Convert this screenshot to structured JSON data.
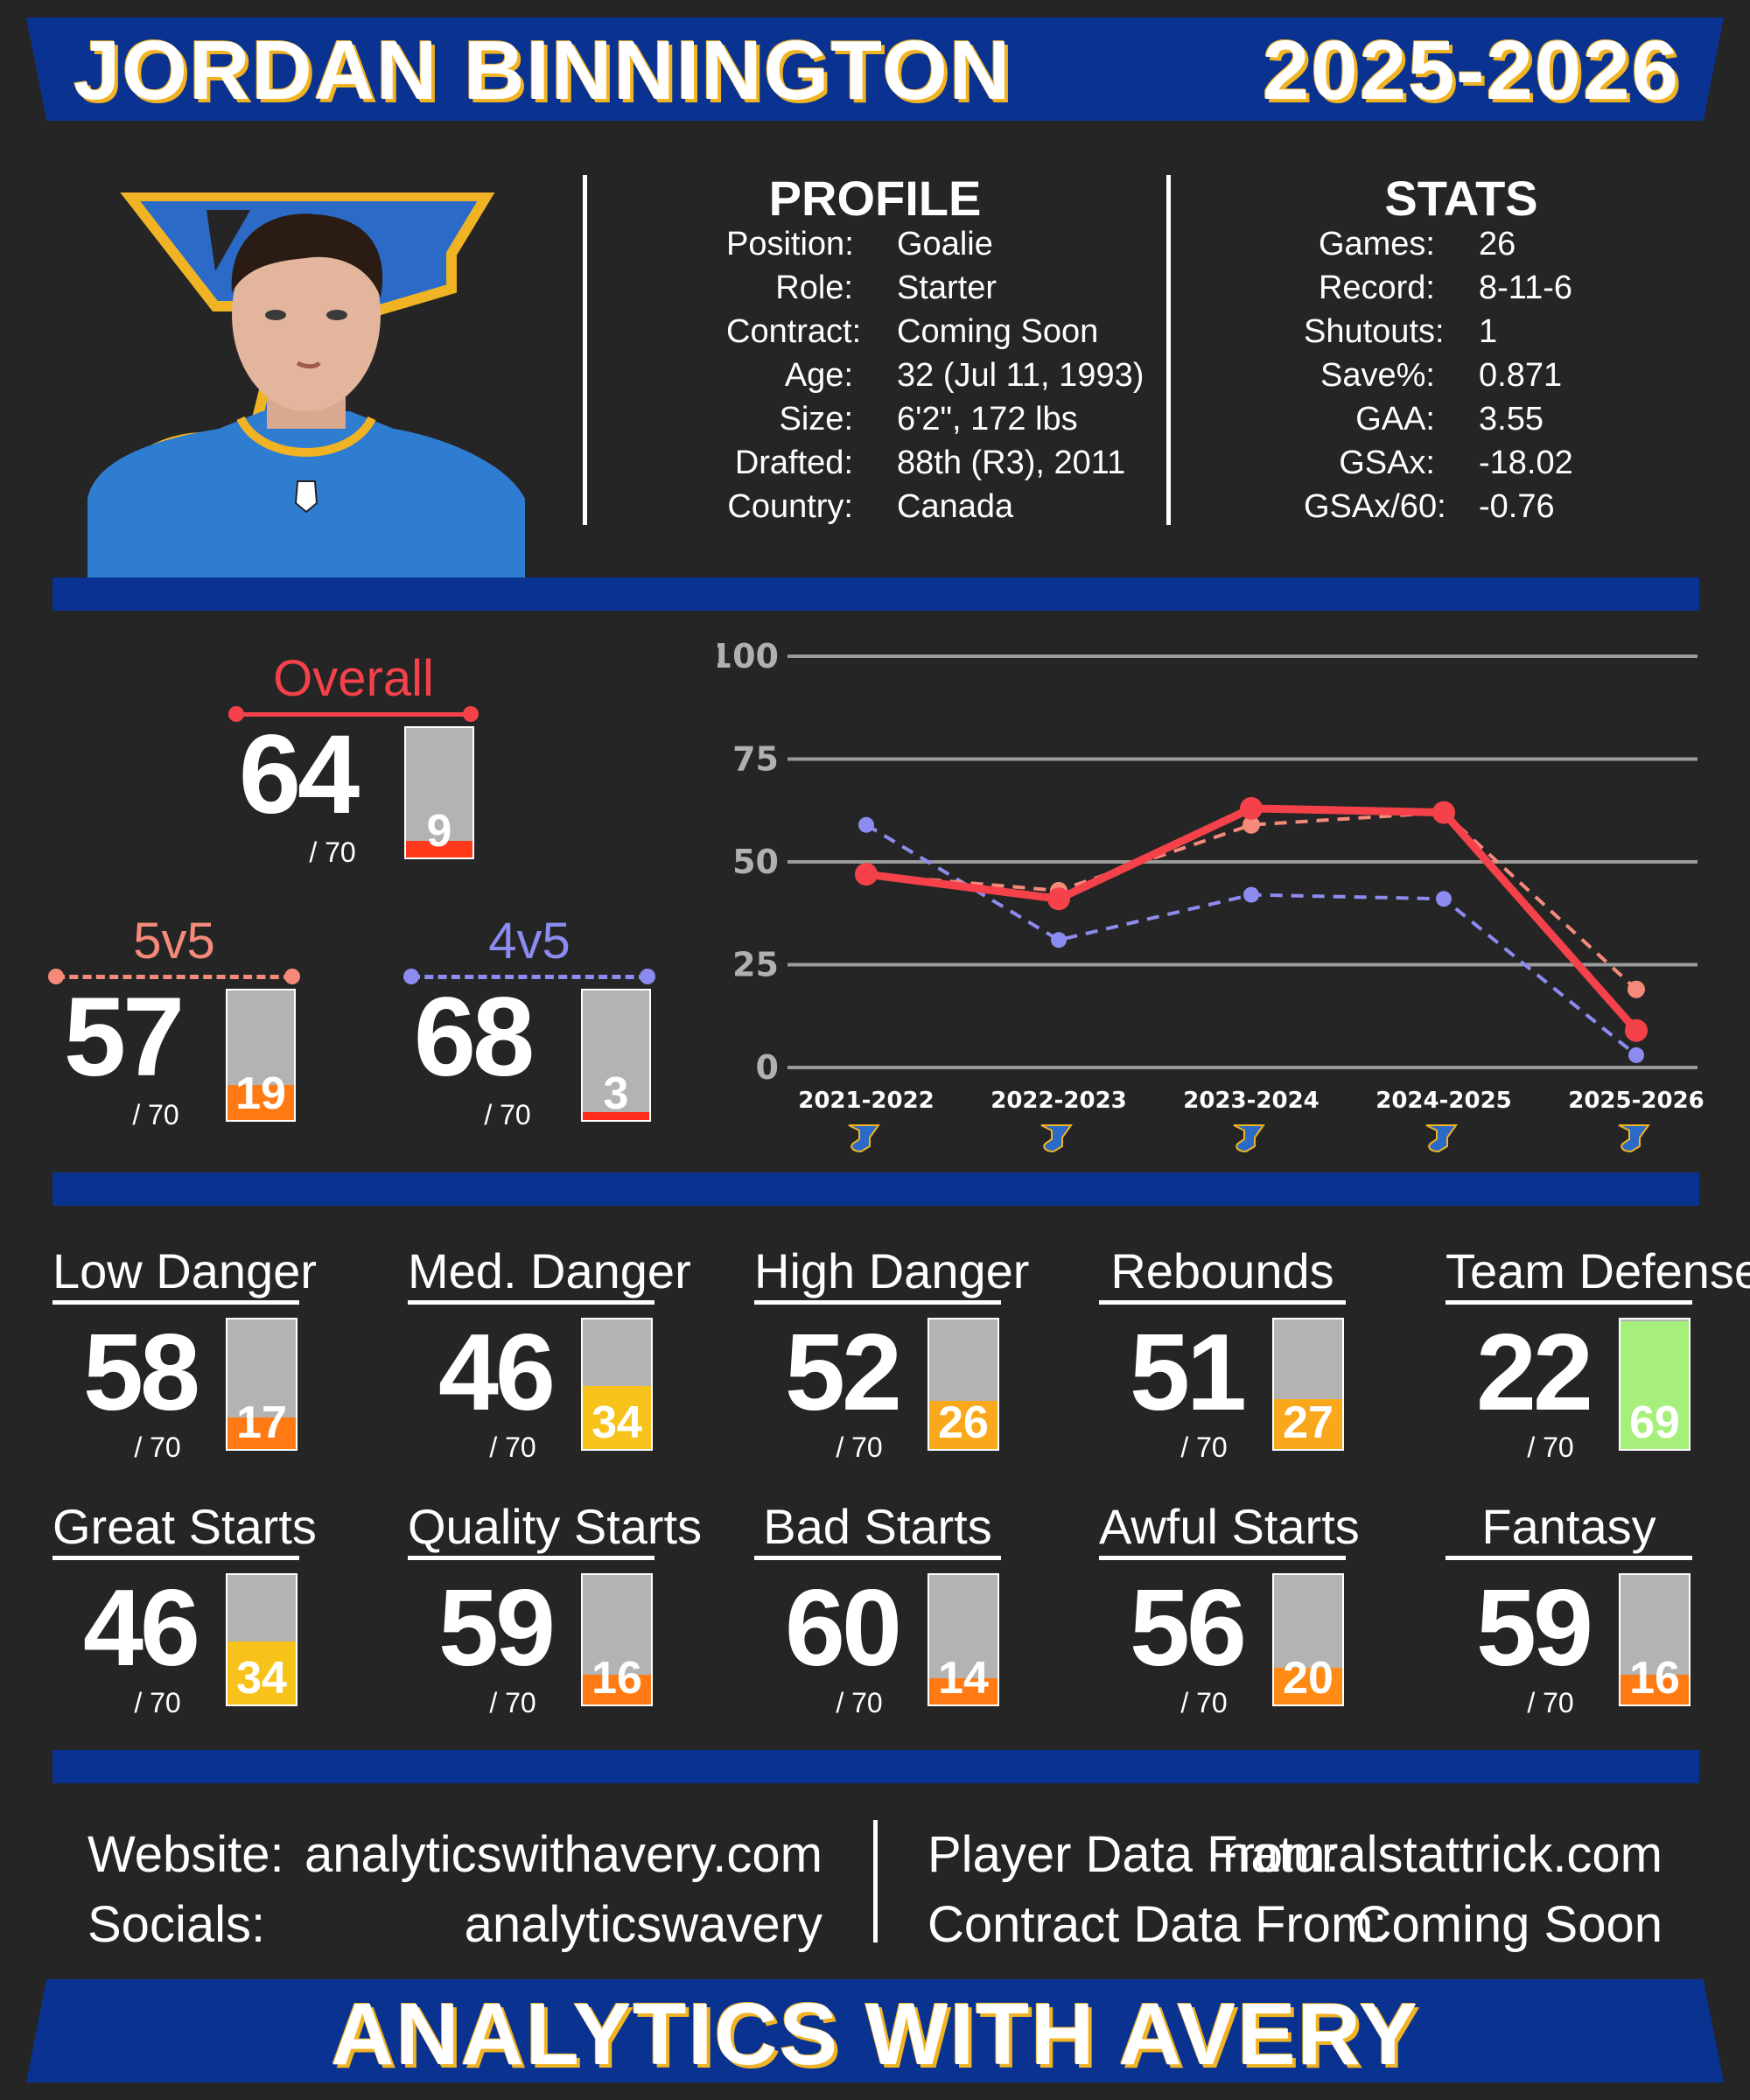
{
  "header": {
    "player_name": "JORDAN BINNINGTON",
    "season": "2025-2026"
  },
  "team_logo": "st-louis-blues-note-logo",
  "colors": {
    "blue": "#0a3391",
    "gold": "#f0b323",
    "overall": "#f5424a",
    "fivev5": "#f58a7a",
    "fourv5": "#8c8cf0",
    "grid": "#9a9a9a"
  },
  "profile": {
    "heading": "PROFILE",
    "rows": [
      {
        "label": "Position:",
        "value": "Goalie"
      },
      {
        "label": "Role:",
        "value": "Starter"
      },
      {
        "label": "Contract:",
        "value": "Coming Soon"
      },
      {
        "label": "Age:",
        "value": "32 (Jul 11, 1993)"
      },
      {
        "label": "Size:",
        "value": "6'2\", 172 lbs"
      },
      {
        "label": "Drafted:",
        "value": "88th (R3), 2011"
      },
      {
        "label": "Country:",
        "value": "Canada"
      }
    ]
  },
  "stats": {
    "heading": "STATS",
    "rows": [
      {
        "label": "Games:",
        "value": "26"
      },
      {
        "label": "Record:",
        "value": "8-11-6"
      },
      {
        "label": "Shutouts:",
        "value": "1"
      },
      {
        "label": "Save%:",
        "value": "0.871"
      },
      {
        "label": "GAA:",
        "value": "3.55"
      },
      {
        "label": "GSAx:",
        "value": "-18.02"
      },
      {
        "label": "GSAx/60:",
        "value": "-0.76"
      }
    ]
  },
  "ratings": {
    "overall": {
      "label": "Overall",
      "score": "64",
      "out_of": "/ 70",
      "rank": 9,
      "rank_label": "9"
    },
    "fivev5": {
      "label": "5v5",
      "score": "57",
      "out_of": "/ 70",
      "rank": 19,
      "rank_label": "19"
    },
    "fourv5": {
      "label": "4v5",
      "score": "68",
      "out_of": "/ 70",
      "rank": 3,
      "rank_label": "3"
    }
  },
  "chart_data": {
    "type": "line",
    "categories": [
      "2021-2022",
      "2022-2023",
      "2023-2024",
      "2024-2025",
      "2025-2026"
    ],
    "y_ticks": [
      "0",
      "25",
      "50",
      "75",
      "100"
    ],
    "ylim": [
      0,
      100
    ],
    "grid": true,
    "series": [
      {
        "name": "Overall",
        "values": [
          47,
          41,
          63,
          62,
          9
        ],
        "style": "solid"
      },
      {
        "name": "5v5",
        "values": [
          47,
          43,
          59,
          62,
          19
        ],
        "style": "dashed"
      },
      {
        "name": "4v5",
        "values": [
          59,
          31,
          42,
          41,
          3
        ],
        "style": "dashed"
      }
    ]
  },
  "metrics": [
    {
      "label": "Low Danger",
      "score": "58",
      "out_of": "/ 70",
      "rank": 17,
      "rank_label": "17",
      "fill": "#ff7a12"
    },
    {
      "label": "Med. Danger",
      "score": "46",
      "out_of": "/ 70",
      "rank": 34,
      "rank_label": "34",
      "fill": "#f7c21a"
    },
    {
      "label": "High Danger",
      "score": "52",
      "out_of": "/ 70",
      "rank": 26,
      "rank_label": "26",
      "fill": "#f9a81c"
    },
    {
      "label": "Rebounds",
      "score": "51",
      "out_of": "/ 70",
      "rank": 27,
      "rank_label": "27",
      "fill": "#f9a81c"
    },
    {
      "label": "Team Defense",
      "score": "22",
      "out_of": "/ 70",
      "rank": 69,
      "rank_label": "69",
      "fill": "#a6ef7a"
    },
    {
      "label": "Great Starts",
      "score": "46",
      "out_of": "/ 70",
      "rank": 34,
      "rank_label": "34",
      "fill": "#f7c21a"
    },
    {
      "label": "Quality Starts",
      "score": "59",
      "out_of": "/ 70",
      "rank": 16,
      "rank_label": "16",
      "fill": "#ff7a12"
    },
    {
      "label": "Bad Starts",
      "score": "60",
      "out_of": "/ 70",
      "rank": 14,
      "rank_label": "14",
      "fill": "#ff7a12"
    },
    {
      "label": "Awful Starts",
      "score": "56",
      "out_of": "/ 70",
      "rank": 20,
      "rank_label": "20",
      "fill": "#ff8a14"
    },
    {
      "label": "Fantasy",
      "score": "59",
      "out_of": "/ 70",
      "rank": 16,
      "rank_label": "16",
      "fill": "#ff7a12"
    }
  ],
  "footer": {
    "website_label": "Website:",
    "website": "analyticswithavery.com",
    "socials_label": "Socials:",
    "socials": "analyticswavery",
    "player_data_label": "Player Data From:",
    "player_data": "naturalstattrick.com",
    "contract_data_label": "Contract Data From:",
    "contract_data": "Coming Soon",
    "brand": "ANALYTICS WITH AVERY"
  }
}
